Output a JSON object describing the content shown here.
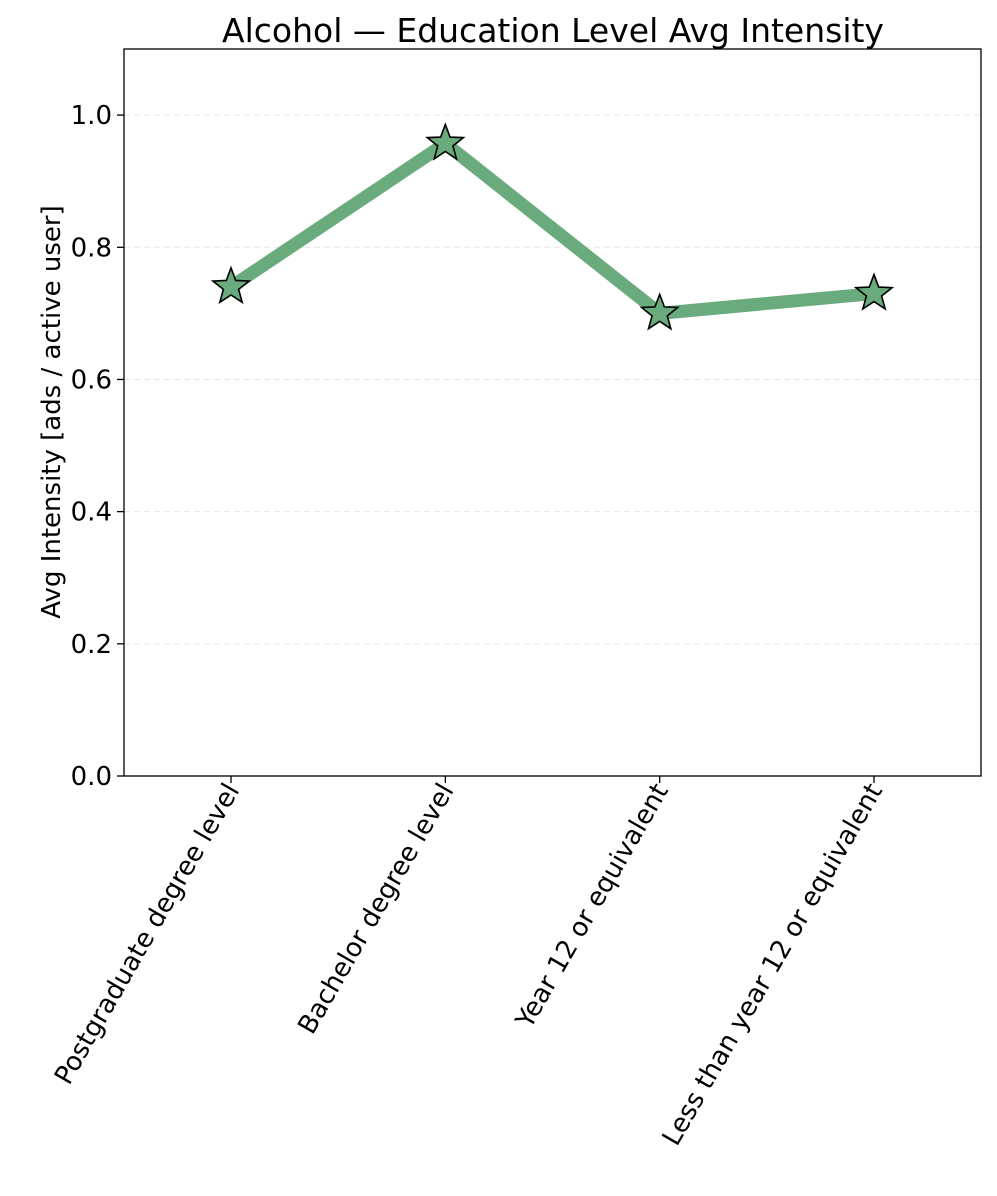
{
  "chart_data": {
    "type": "line",
    "title": "Alcohol — Education Level Avg Intensity",
    "xlabel": "",
    "ylabel": "Avg Intensity [ads / active user]",
    "categories": [
      "Postgraduate degree level",
      "Bachelor degree level",
      "Year 12 or equivalent",
      "Less than year 12 or equivalent"
    ],
    "series": [
      {
        "values": [
          0.74,
          0.957,
          0.7,
          0.73
        ],
        "color": "#6aab7e",
        "marker": "star",
        "marker_edge_color": "#000000"
      }
    ],
    "ylim": [
      0,
      1.1
    ],
    "yticks": [
      0.0,
      0.2,
      0.4,
      0.6,
      0.8,
      1.0
    ],
    "ytick_labels": [
      "0.0",
      "0.2",
      "0.4",
      "0.6",
      "0.8",
      "1.0"
    ],
    "grid": "y-dashed",
    "legend": "none"
  }
}
